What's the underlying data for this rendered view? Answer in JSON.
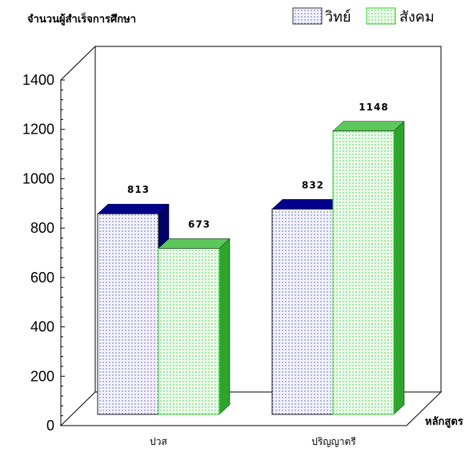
{
  "chart_data": {
    "type": "bar",
    "ylabel": "จำนวนผู้สำเร็จการศึกษา",
    "xlabel": "หลักสูตร",
    "categories": [
      "ปวส",
      "ปริญญาตรี"
    ],
    "series": [
      {
        "name": "วิทย์",
        "values": [
          813,
          832
        ],
        "front_color": "#f3f3ff",
        "top_color": "#00008b",
        "side_color": "#000066",
        "dot_color": "#5555bb"
      },
      {
        "name": "สังคม",
        "values": [
          673,
          1148
        ],
        "front_color": "#e9fbe9",
        "top_color": "#5cc85c",
        "side_color": "#2da52d",
        "dot_color": "#66cc66"
      }
    ],
    "ylim": [
      0,
      1400
    ],
    "yticks": [
      0,
      200,
      400,
      600,
      800,
      1000,
      1200,
      1400
    ],
    "data_labels": true,
    "grid": false,
    "legend_position": "top-right",
    "style": "3d"
  }
}
